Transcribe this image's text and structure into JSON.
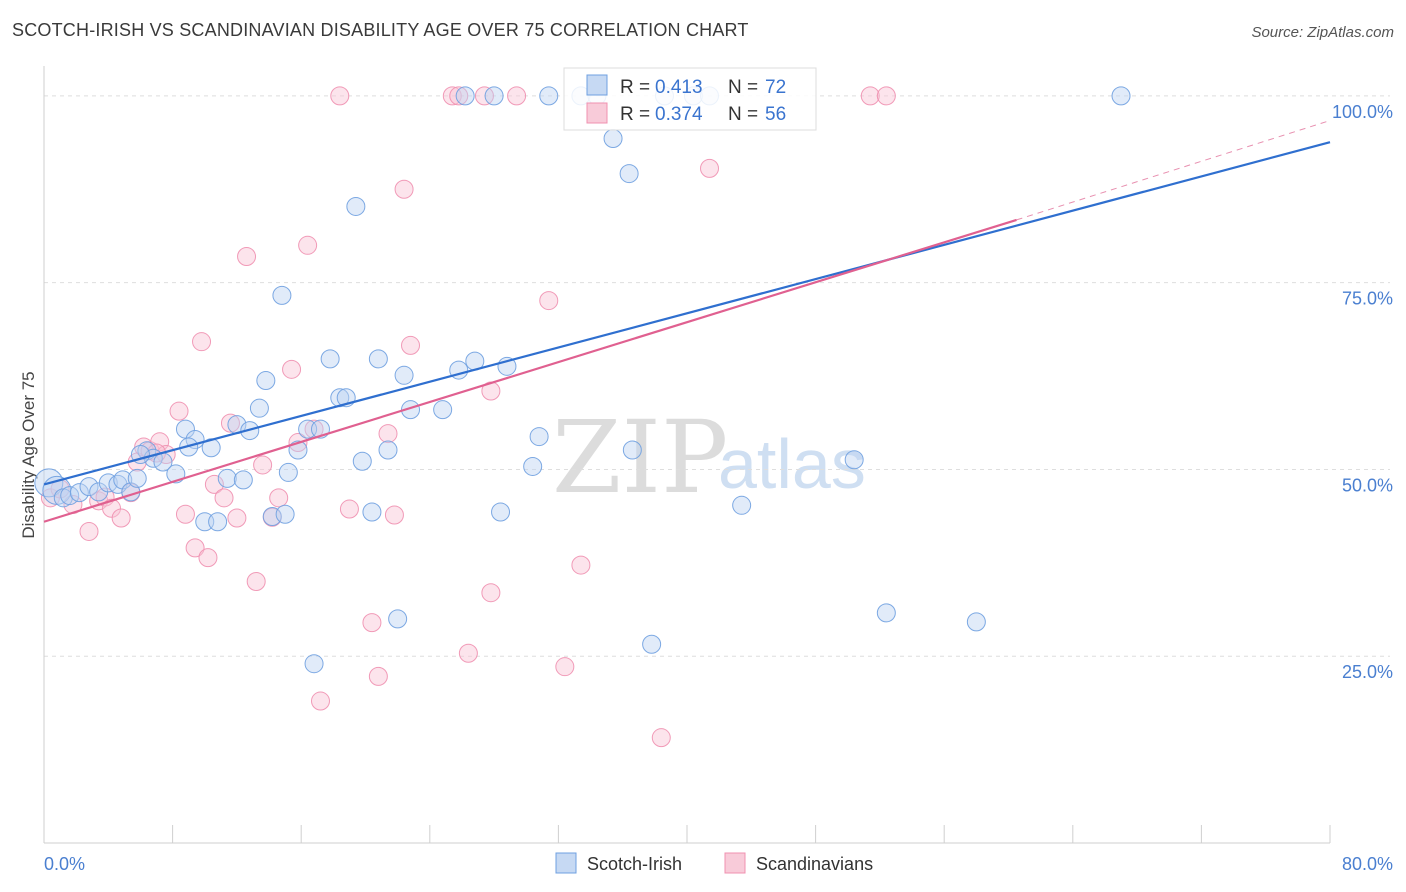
{
  "title": "SCOTCH-IRISH VS SCANDINAVIAN DISABILITY AGE OVER 75 CORRELATION CHART",
  "source": "Source: ZipAtlas.com",
  "watermark": {
    "zip": "ZIP",
    "atlas": "atlas"
  },
  "colors": {
    "blue": "#6fa0e0",
    "blue_line": "#2f6fcf",
    "pink": "#f090b0",
    "pink_line": "#e06090",
    "grid": "#d8d8d8",
    "axis_label": "#4a7fd0"
  },
  "legend": {
    "rows": [
      {
        "r_label": "R = ",
        "r_value": "0.413",
        "n_label": "N = ",
        "n_value": "72"
      },
      {
        "r_label": "R = ",
        "r_value": "0.374",
        "n_label": "N = ",
        "n_value": "56"
      }
    ]
  },
  "chart_data": {
    "type": "scatter",
    "title": "SCOTCH-IRISH VS SCANDINAVIAN DISABILITY AGE OVER 75 CORRELATION CHART",
    "xlabel": "",
    "ylabel": "Disability Age Over 75",
    "xlim": [
      0,
      80
    ],
    "ylim": [
      0,
      104
    ],
    "x_tick_labels": [
      "0.0%",
      "80.0%"
    ],
    "y_ticks": [
      25,
      50,
      75,
      100
    ],
    "y_tick_labels": [
      "25.0%",
      "50.0%",
      "75.0%",
      "100.0%"
    ],
    "grid": true,
    "legend_position": "top-center",
    "series": [
      {
        "name": "Scotch-Irish",
        "color": "#6fa0e0",
        "R": 0.413,
        "N": 72,
        "trend": {
          "x": [
            0,
            80
          ],
          "y": [
            48.0,
            93.8
          ],
          "dashed_extension": false
        },
        "points": [
          [
            0.3,
            48.2
          ],
          [
            0.8,
            47.2
          ],
          [
            1.2,
            46.2
          ],
          [
            1.6,
            46.5
          ],
          [
            2.2,
            46.9
          ],
          [
            2.8,
            47.7
          ],
          [
            3.4,
            47.0
          ],
          [
            4.0,
            48.2
          ],
          [
            4.6,
            48.0
          ],
          [
            4.9,
            48.6
          ],
          [
            5.4,
            47.0
          ],
          [
            5.8,
            48.8
          ],
          [
            6.4,
            52.5
          ],
          [
            6.8,
            51.5
          ],
          [
            7.4,
            51.0
          ],
          [
            8.2,
            49.4
          ],
          [
            8.8,
            55.4
          ],
          [
            9.4,
            54.0
          ],
          [
            10.0,
            43.0
          ],
          [
            10.4,
            52.9
          ],
          [
            10.8,
            43.0
          ],
          [
            11.4,
            48.8
          ],
          [
            12.0,
            56.0
          ],
          [
            12.4,
            48.6
          ],
          [
            12.8,
            55.2
          ],
          [
            13.4,
            58.2
          ],
          [
            13.8,
            61.9
          ],
          [
            14.2,
            43.7
          ],
          [
            14.8,
            73.3
          ],
          [
            15.2,
            49.6
          ],
          [
            15.8,
            52.6
          ],
          [
            16.4,
            55.4
          ],
          [
            16.8,
            24.0
          ],
          [
            17.2,
            55.4
          ],
          [
            17.8,
            64.8
          ],
          [
            18.4,
            59.6
          ],
          [
            18.8,
            59.6
          ],
          [
            19.4,
            85.2
          ],
          [
            19.8,
            51.1
          ],
          [
            20.4,
            44.3
          ],
          [
            20.8,
            64.8
          ],
          [
            21.4,
            52.6
          ],
          [
            22.0,
            30.0
          ],
          [
            22.4,
            62.6
          ],
          [
            22.8,
            58.0
          ],
          [
            24.8,
            58.0
          ],
          [
            25.8,
            63.3
          ],
          [
            26.2,
            100.0
          ],
          [
            26.8,
            64.5
          ],
          [
            28.0,
            100.0
          ],
          [
            28.4,
            44.3
          ],
          [
            28.8,
            63.8
          ],
          [
            30.4,
            50.4
          ],
          [
            30.8,
            54.4
          ],
          [
            31.4,
            100.0
          ],
          [
            33.4,
            100.0
          ],
          [
            34.4,
            100.0
          ],
          [
            35.4,
            94.3
          ],
          [
            36.4,
            89.6
          ],
          [
            36.6,
            52.6
          ],
          [
            37.8,
            26.6
          ],
          [
            38.6,
            100.0
          ],
          [
            40.4,
            100.0
          ],
          [
            41.4,
            100.0
          ],
          [
            43.4,
            45.2
          ],
          [
            50.4,
            51.3
          ],
          [
            52.4,
            30.8
          ],
          [
            58.0,
            29.6
          ],
          [
            67.0,
            100.0
          ],
          [
            6.0,
            52.0
          ],
          [
            9.0,
            53.0
          ],
          [
            15.0,
            44.0
          ]
        ]
      },
      {
        "name": "Scandinavians",
        "color": "#f090b0",
        "R": 0.374,
        "N": 56,
        "trend": {
          "x": [
            0,
            60.5
          ],
          "y": [
            43.0,
            83.4
          ],
          "dashed_extension_to": [
            80,
            96.7
          ]
        },
        "points": [
          [
            0.4,
            46.2
          ],
          [
            1.0,
            47.4
          ],
          [
            1.8,
            45.3
          ],
          [
            2.8,
            41.7
          ],
          [
            3.4,
            45.8
          ],
          [
            3.8,
            46.3
          ],
          [
            4.2,
            44.8
          ],
          [
            4.8,
            43.5
          ],
          [
            5.4,
            46.9
          ],
          [
            5.8,
            51.0
          ],
          [
            6.2,
            53.0
          ],
          [
            6.6,
            52.5
          ],
          [
            7.2,
            53.7
          ],
          [
            7.6,
            52.0
          ],
          [
            8.4,
            57.8
          ],
          [
            8.8,
            44.0
          ],
          [
            9.4,
            39.5
          ],
          [
            9.8,
            67.1
          ],
          [
            10.2,
            38.2
          ],
          [
            10.6,
            48.0
          ],
          [
            11.2,
            46.2
          ],
          [
            11.6,
            56.2
          ],
          [
            12.0,
            43.5
          ],
          [
            12.6,
            78.5
          ],
          [
            13.2,
            35.0
          ],
          [
            13.6,
            50.6
          ],
          [
            14.2,
            43.6
          ],
          [
            14.6,
            46.2
          ],
          [
            15.4,
            63.4
          ],
          [
            15.8,
            53.6
          ],
          [
            16.4,
            80.0
          ],
          [
            16.8,
            55.4
          ],
          [
            18.4,
            100.0
          ],
          [
            19.0,
            44.7
          ],
          [
            20.4,
            29.5
          ],
          [
            20.8,
            22.3
          ],
          [
            21.4,
            54.8
          ],
          [
            21.8,
            43.9
          ],
          [
            22.4,
            87.5
          ],
          [
            22.8,
            66.6
          ],
          [
            25.4,
            100.0
          ],
          [
            25.8,
            100.0
          ],
          [
            26.4,
            25.4
          ],
          [
            27.4,
            100.0
          ],
          [
            27.8,
            33.5
          ],
          [
            27.8,
            60.5
          ],
          [
            29.4,
            100.0
          ],
          [
            31.4,
            72.6
          ],
          [
            32.4,
            23.6
          ],
          [
            33.4,
            37.2
          ],
          [
            38.4,
            14.1
          ],
          [
            41.4,
            90.3
          ],
          [
            51.4,
            100.0
          ],
          [
            52.4,
            100.0
          ],
          [
            17.2,
            19.0
          ],
          [
            7.0,
            52.2
          ]
        ]
      }
    ]
  }
}
